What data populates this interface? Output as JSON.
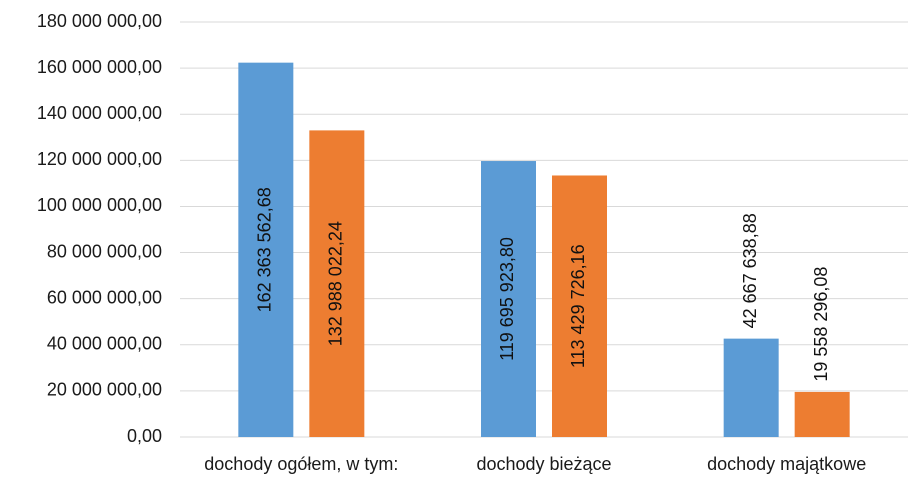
{
  "chart_data": {
    "type": "bar",
    "title": "",
    "xlabel": "",
    "ylabel": "",
    "categories": [
      "dochody ogółem, w tym:",
      "dochody bieżące",
      "dochody majątkowe"
    ],
    "series": [
      {
        "color": "#5b9bd5",
        "values": [
          162363562.68,
          119695923.8,
          42667638.88
        ],
        "labels": [
          "162 363 562,68",
          "119 695 923,80",
          "42 667 638,88"
        ]
      },
      {
        "color": "#ed7d31",
        "values": [
          132988022.24,
          113429726.16,
          19558296.08
        ],
        "labels": [
          "132 988 022,24",
          "113 429 726,16",
          "19 558 296,08"
        ]
      }
    ],
    "ylim": [
      0,
      180000000
    ],
    "yticks": [
      0,
      20000000,
      40000000,
      60000000,
      80000000,
      100000000,
      120000000,
      140000000,
      160000000,
      180000000
    ],
    "ytick_labels": [
      "0,00",
      "20 000 000,00",
      "40 000 000,00",
      "60 000 000,00",
      "80 000 000,00",
      "100 000 000,00",
      "120 000 000,00",
      "140 000 000,00",
      "160 000 000,00",
      "180 000 000,00"
    ],
    "grid": true,
    "legend": "none"
  }
}
